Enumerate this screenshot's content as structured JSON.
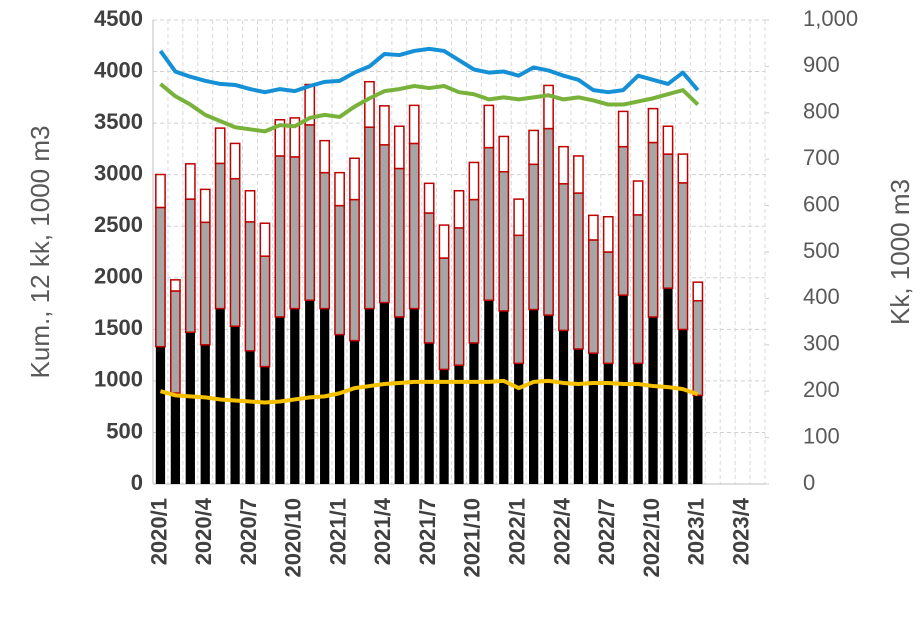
{
  "chart_data": {
    "type": "bar",
    "stacked": true,
    "ylabel": "Kum., 12 kk, 1000 m3",
    "y2label": "Kk, 1000 m3",
    "ylim": [
      0,
      4500
    ],
    "yticks": [
      0,
      500,
      1000,
      1500,
      2000,
      2500,
      3000,
      3500,
      4000,
      4500
    ],
    "y2lim": [
      0,
      1000
    ],
    "y2ticks": [
      0,
      100,
      200,
      300,
      400,
      500,
      600,
      700,
      800,
      900,
      {
        "value": 1000,
        "label": "1,000"
      }
    ],
    "grid": true,
    "categories": [
      "2020/1",
      null,
      null,
      "2020/4",
      null,
      null,
      "2020/7",
      null,
      null,
      "2020/10",
      null,
      null,
      "2021/1",
      null,
      null,
      "2021/4",
      null,
      null,
      "2021/7",
      null,
      null,
      "2021/10",
      null,
      null,
      "2022/1",
      null,
      null,
      "2022/4",
      null,
      null,
      "2022/7",
      null,
      null,
      "2022/10",
      null,
      null,
      "2023/1",
      null,
      null,
      "2023/4",
      null
    ],
    "series": [
      {
        "type": "bar",
        "axis": "y2",
        "color": "#000000",
        "values": [
          296,
          196,
          327,
          300,
          378,
          340,
          287,
          253,
          360,
          378,
          396,
          378,
          322,
          309,
          378,
          391,
          360,
          378,
          304,
          247,
          256,
          304,
          396,
          373,
          260,
          376,
          364,
          331,
          291,
          282,
          260,
          407,
          260,
          360,
          422,
          333,
          191,
          null,
          null,
          null,
          null
        ]
      },
      {
        "type": "bar",
        "axis": "y2",
        "color": "#a6a6a6",
        "values": [
          300,
          220,
          287,
          264,
          313,
          318,
          278,
          238,
          347,
          327,
          378,
          293,
          278,
          304,
          391,
          340,
          320,
          356,
          280,
          240,
          296,
          309,
          329,
          300,
          276,
          313,
          402,
          316,
          336,
          244,
          240,
          320,
          320,
          376,
          289,
          316,
          204,
          null,
          null,
          null,
          null
        ]
      },
      {
        "type": "bar",
        "axis": "y2",
        "color": "#ffffff",
        "values": [
          71,
          24,
          76,
          71,
          76,
          76,
          67,
          71,
          78,
          84,
          87,
          69,
          71,
          89,
          98,
          84,
          91,
          82,
          64,
          71,
          80,
          80,
          91,
          76,
          78,
          73,
          93,
          80,
          80,
          53,
          76,
          76,
          73,
          73,
          60,
          62,
          40,
          null,
          null,
          null,
          null
        ]
      },
      {
        "type": "line",
        "axis": "y",
        "color": "#1590d6",
        "values": [
          4200,
          4000,
          3950,
          3910,
          3880,
          3870,
          3830,
          3800,
          3830,
          3810,
          3860,
          3900,
          3910,
          3990,
          4050,
          4170,
          4160,
          4200,
          4220,
          4200,
          4110,
          4020,
          3990,
          4000,
          3960,
          4040,
          4010,
          3960,
          3920,
          3820,
          3800,
          3820,
          3960,
          3920,
          3880,
          3990,
          3820,
          null,
          null,
          null,
          null
        ]
      },
      {
        "type": "line",
        "axis": "y",
        "color": "#78b23b",
        "values": [
          3880,
          3760,
          3680,
          3580,
          3520,
          3460,
          3440,
          3420,
          3480,
          3470,
          3550,
          3580,
          3560,
          3660,
          3740,
          3810,
          3830,
          3860,
          3840,
          3860,
          3800,
          3780,
          3730,
          3750,
          3730,
          3750,
          3770,
          3730,
          3750,
          3720,
          3680,
          3680,
          3710,
          3740,
          3780,
          3820,
          3680,
          null,
          null,
          null,
          null
        ]
      },
      {
        "type": "line",
        "axis": "y",
        "color": "#f5c000",
        "values": [
          900,
          860,
          850,
          840,
          820,
          810,
          800,
          790,
          800,
          820,
          840,
          850,
          880,
          930,
          950,
          970,
          980,
          990,
          990,
          990,
          990,
          990,
          990,
          1000,
          930,
          990,
          1000,
          980,
          970,
          980,
          980,
          970,
          970,
          950,
          940,
          920,
          870,
          null,
          null,
          null,
          null
        ]
      }
    ],
    "bar_outline": "#c00000"
  }
}
